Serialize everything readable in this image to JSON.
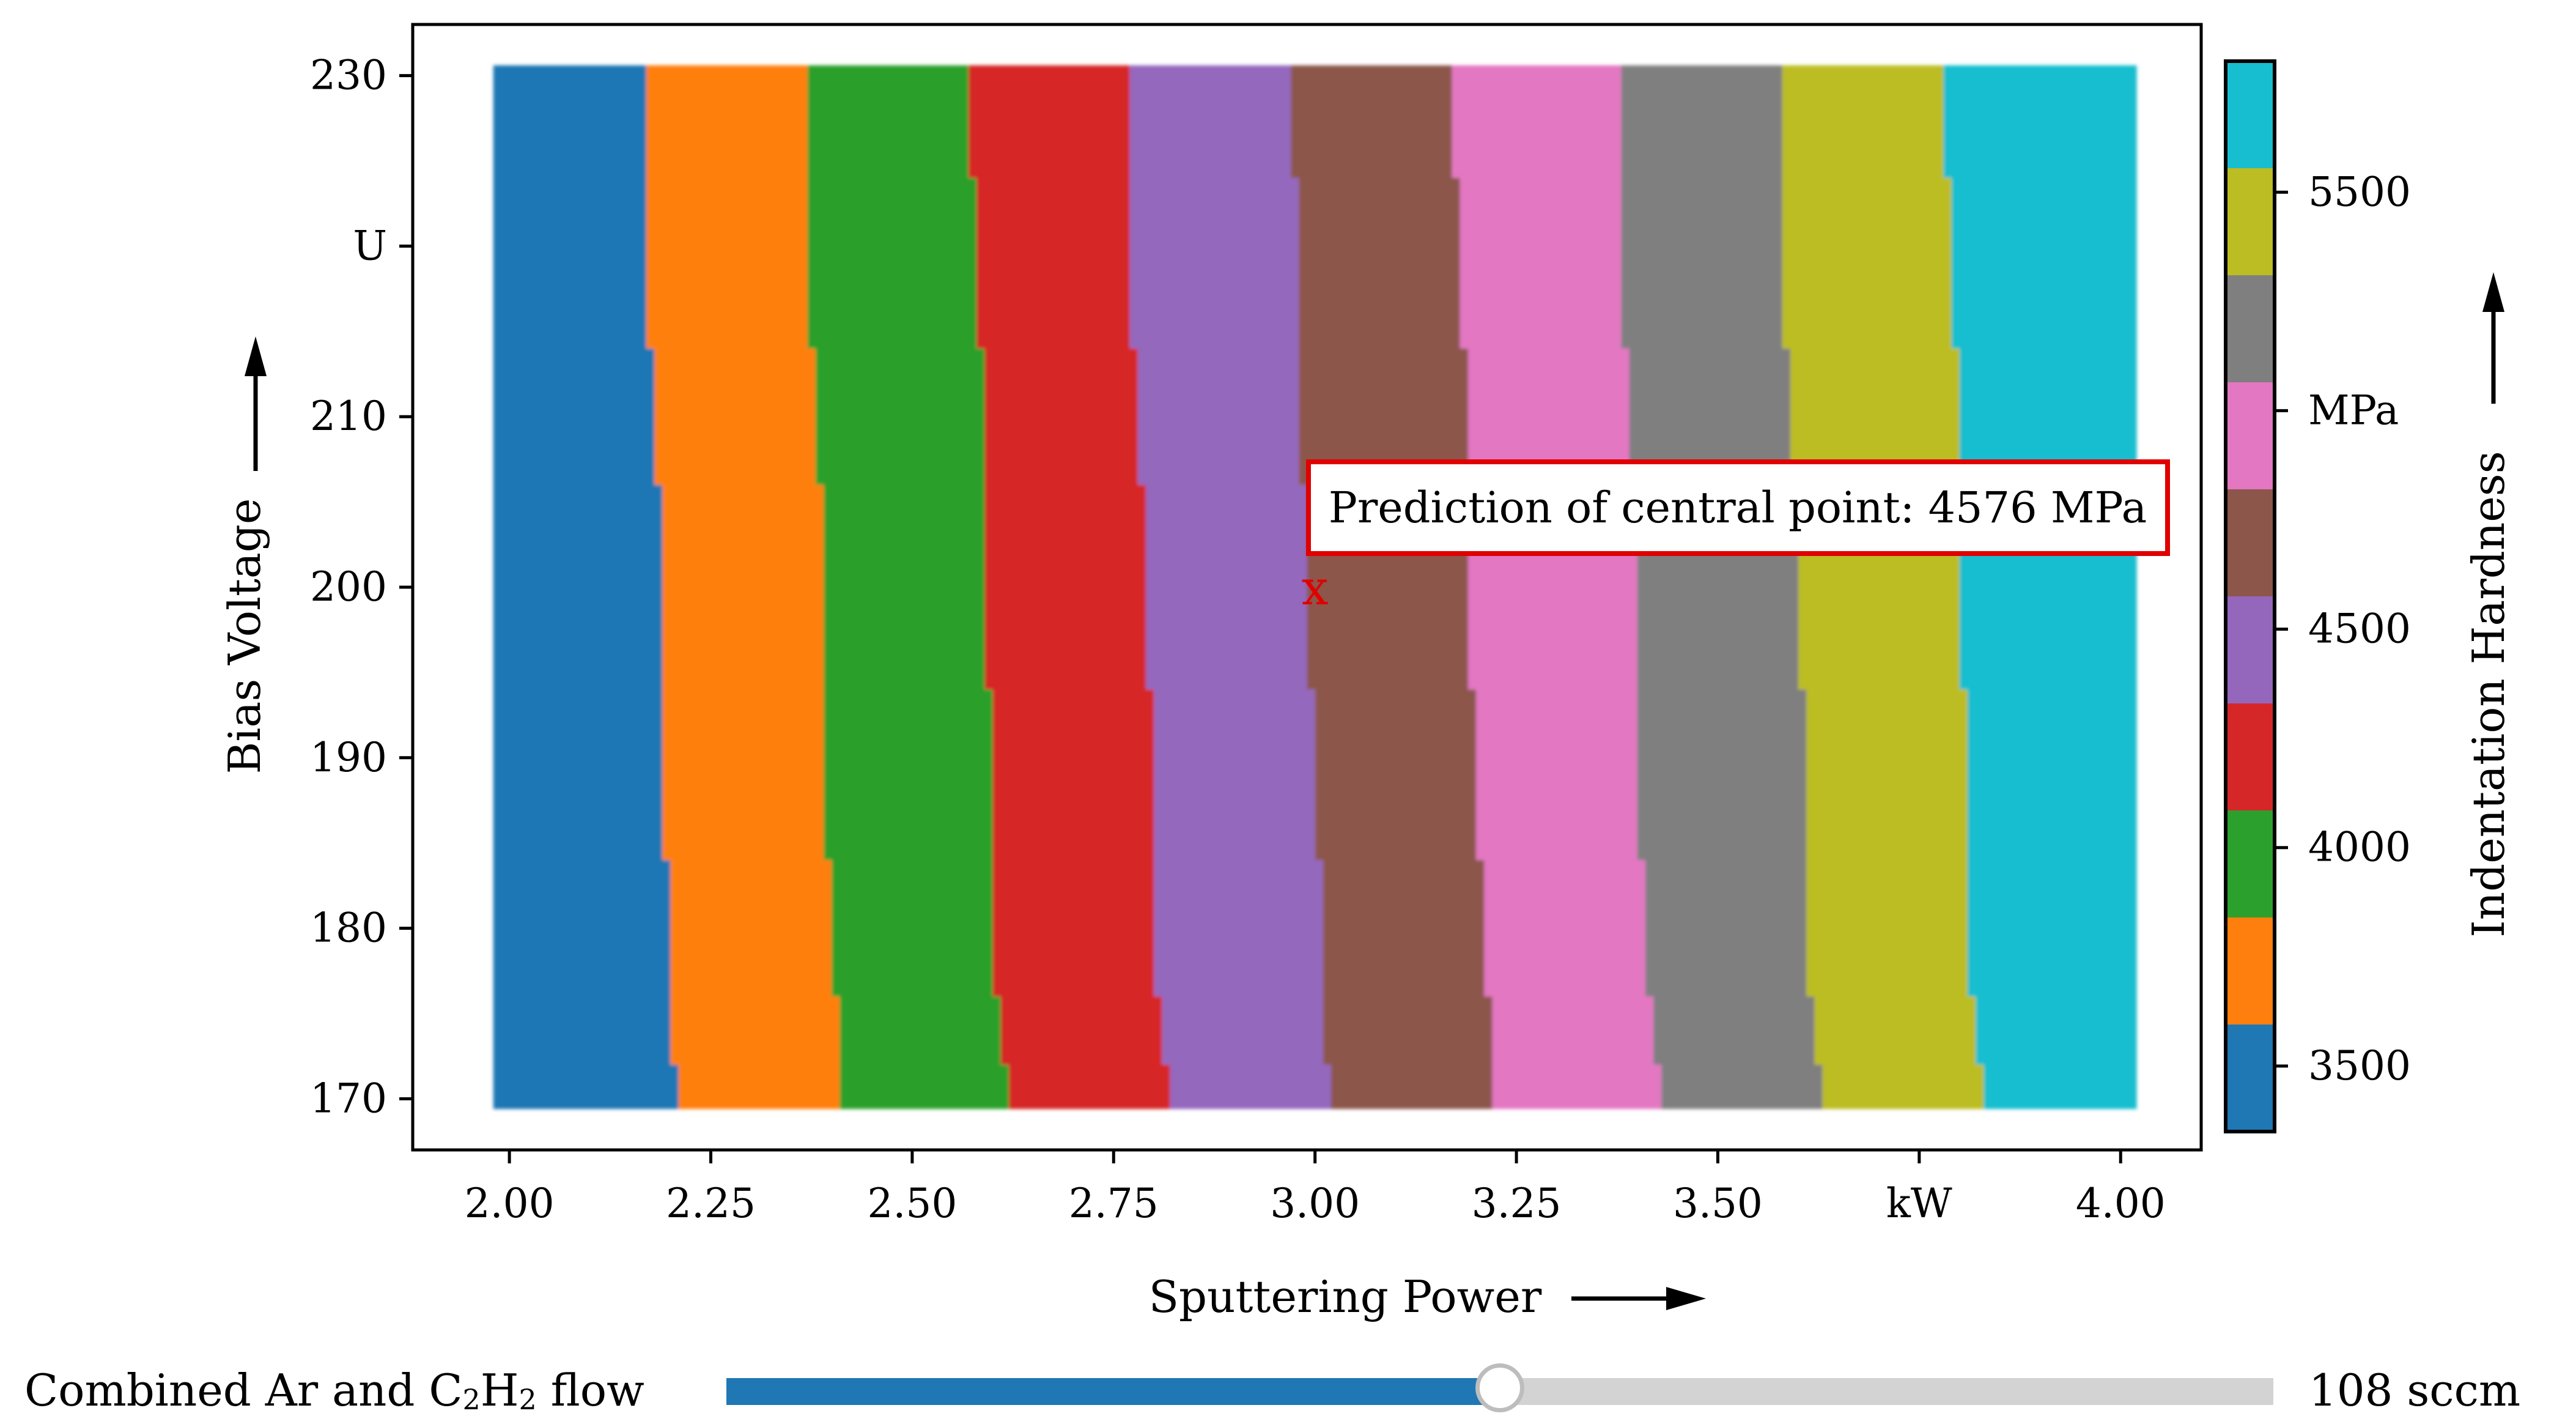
{
  "chart_data": {
    "type": "heatmap",
    "xlabel": "Sputtering Power",
    "ylabel": "Bias Voltage",
    "x_unit": "kW",
    "y_unit": "U",
    "xlim": [
      1.88,
      4.1
    ],
    "ylim": [
      167,
      233
    ],
    "x_data_range": [
      2.0,
      4.0
    ],
    "y_data_range": [
      170,
      230
    ],
    "x_ticks": [
      {
        "value": 2.0,
        "label": "2.00"
      },
      {
        "value": 2.25,
        "label": "2.25"
      },
      {
        "value": 2.5,
        "label": "2.50"
      },
      {
        "value": 2.75,
        "label": "2.75"
      },
      {
        "value": 3.0,
        "label": "3.00"
      },
      {
        "value": 3.25,
        "label": "3.25"
      },
      {
        "value": 3.5,
        "label": "3.50"
      },
      {
        "value": 3.75,
        "label": "kW"
      },
      {
        "value": 4.0,
        "label": "4.00"
      }
    ],
    "y_ticks": [
      {
        "value": 170,
        "label": "170"
      },
      {
        "value": 180,
        "label": "180"
      },
      {
        "value": 190,
        "label": "190"
      },
      {
        "value": 200,
        "label": "200"
      },
      {
        "value": 210,
        "label": "210"
      },
      {
        "value": 220,
        "label": "U"
      },
      {
        "value": 230,
        "label": "230"
      }
    ],
    "voltage_break_points": [
      170,
      172,
      176,
      184,
      194,
      206,
      214,
      224,
      230
    ],
    "region_boundaries_kw": [
      [
        2.21,
        2.2,
        2.2,
        2.19,
        2.19,
        2.18,
        2.17,
        2.17
      ],
      [
        2.41,
        2.41,
        2.4,
        2.39,
        2.39,
        2.38,
        2.37,
        2.37
      ],
      [
        2.62,
        2.61,
        2.6,
        2.6,
        2.59,
        2.59,
        2.58,
        2.57
      ],
      [
        2.82,
        2.81,
        2.8,
        2.8,
        2.79,
        2.78,
        2.77,
        2.77
      ],
      [
        3.02,
        3.01,
        3.01,
        3.0,
        2.99,
        2.98,
        2.98,
        2.97
      ],
      [
        3.22,
        3.22,
        3.21,
        3.2,
        3.19,
        3.19,
        3.18,
        3.17
      ],
      [
        3.43,
        3.42,
        3.41,
        3.4,
        3.4,
        3.39,
        3.38,
        3.38
      ],
      [
        3.63,
        3.62,
        3.61,
        3.61,
        3.6,
        3.59,
        3.58,
        3.58
      ],
      [
        3.83,
        3.82,
        3.81,
        3.81,
        3.8,
        3.8,
        3.79,
        3.78
      ]
    ],
    "class_colors": [
      "#1f77b4",
      "#ff7f0e",
      "#2ca02c",
      "#d62728",
      "#9467bd",
      "#8c564b",
      "#e377c2",
      "#7f7f7f",
      "#bcbd22",
      "#17becf"
    ],
    "colorbar": {
      "label": "Indentation Hardness",
      "range": [
        3350,
        5800
      ],
      "bins": [
        3350,
        3595,
        3840,
        4085,
        4330,
        4575,
        4820,
        5065,
        5310,
        5555,
        5800
      ],
      "ticks": [
        {
          "value": 3500,
          "label": "3500"
        },
        {
          "value": 4000,
          "label": "4000"
        },
        {
          "value": 4500,
          "label": "4500"
        },
        {
          "value": 5000,
          "label": "MPa"
        },
        {
          "value": 5500,
          "label": "5500"
        }
      ]
    },
    "central_point": {
      "x": 3.0,
      "y": 200,
      "marker": "x"
    },
    "annotation": {
      "text": "Prediction of central point: 4576 MPa",
      "x": 3.0,
      "y": 206
    }
  },
  "slider": {
    "label": "Combined Ar and C",
    "label_sub_1": "2",
    "label_mid": "H",
    "label_sub_2": "2",
    "label_end": " flow",
    "fraction": 0.5,
    "value_text": "108 sccm",
    "fill_color": "#1f77b4",
    "track_color": "#d3d3d3"
  }
}
